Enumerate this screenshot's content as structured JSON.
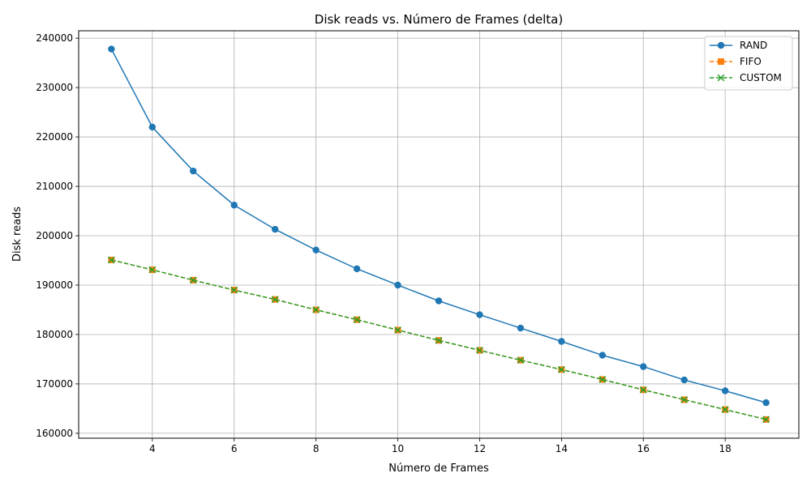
{
  "chart_data": {
    "type": "line",
    "title": "Disk reads vs. Número de Frames (delta)",
    "xlabel": "Número de Frames",
    "ylabel": "Disk reads",
    "x": [
      3,
      4,
      5,
      6,
      7,
      8,
      9,
      10,
      11,
      12,
      13,
      14,
      15,
      16,
      17,
      18,
      19
    ],
    "xlim": [
      2.2,
      19.8
    ],
    "ylim": [
      159000,
      241500
    ],
    "xticks": [
      4,
      6,
      8,
      10,
      12,
      14,
      16,
      18
    ],
    "yticks": [
      160000,
      170000,
      180000,
      190000,
      200000,
      210000,
      220000,
      230000,
      240000
    ],
    "grid": true,
    "legend_position": "top-right",
    "series": [
      {
        "name": "RAND",
        "color": "#1f77b4",
        "marker": "circle",
        "linestyle": "solid",
        "values": [
          237800,
          222000,
          213100,
          206200,
          201300,
          197100,
          193300,
          190000,
          186800,
          184000,
          181300,
          178600,
          175800,
          173500,
          170800,
          168600,
          166200
        ]
      },
      {
        "name": "FIFO",
        "color": "#ff7f0e",
        "marker": "square",
        "linestyle": "dashed",
        "values": [
          195100,
          193100,
          191000,
          189000,
          187100,
          185000,
          183000,
          180900,
          178800,
          176800,
          174800,
          172900,
          170900,
          168800,
          166800,
          164800,
          162800
        ]
      },
      {
        "name": "CUSTOM",
        "color": "#2ca02c",
        "marker": "x",
        "linestyle": "dashed",
        "values": [
          195100,
          193100,
          191000,
          189000,
          187100,
          185000,
          183000,
          180900,
          178800,
          176800,
          174800,
          172900,
          170900,
          168800,
          166800,
          164800,
          162800
        ]
      }
    ]
  }
}
